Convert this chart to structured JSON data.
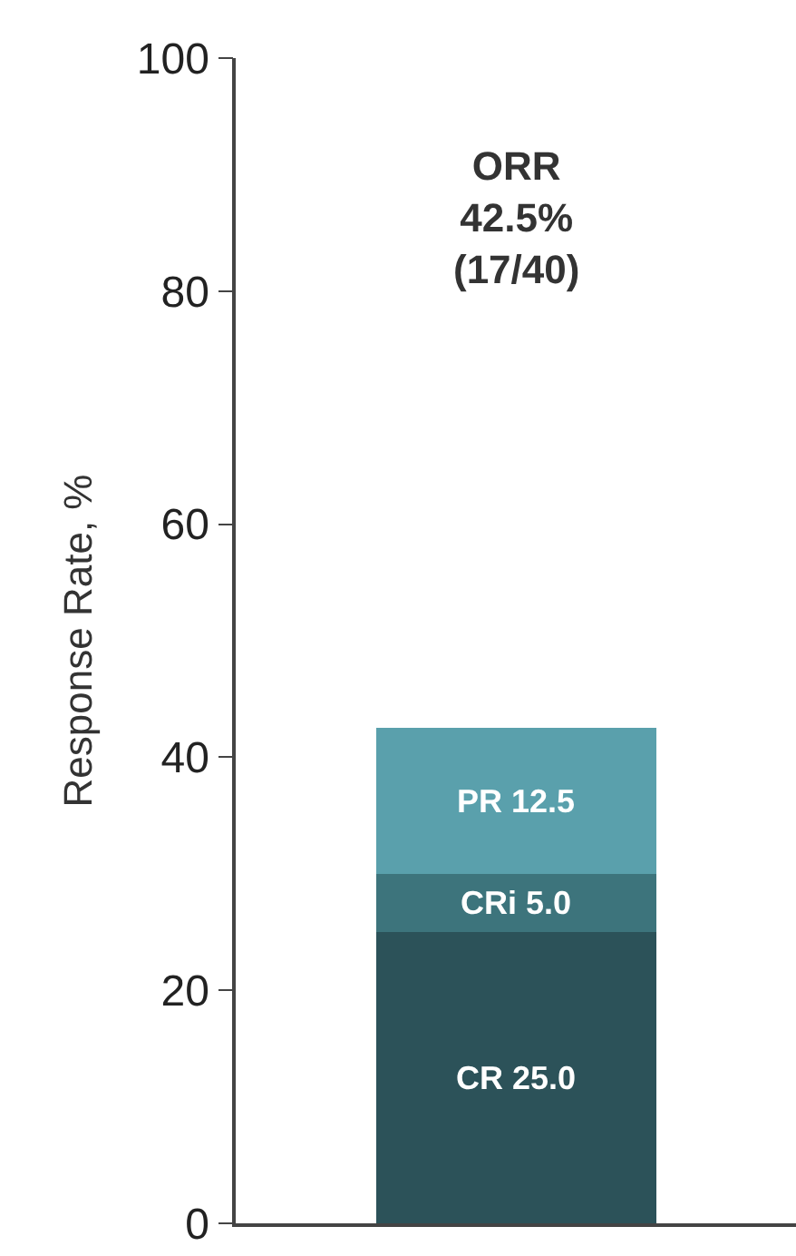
{
  "chart_data": {
    "type": "bar",
    "stacked": true,
    "ylabel": "Response Rate, %",
    "categories": [
      null
    ],
    "series": [
      {
        "color": "#2c5259",
        "values": [
          25.0
        ],
        "value_labels": [
          "CR 25.0"
        ]
      },
      {
        "color": "#3d747c",
        "values": [
          5.0
        ],
        "value_labels": [
          "CRi 5.0"
        ]
      },
      {
        "color": "#5aa0ac",
        "values": [
          12.5
        ],
        "value_labels": [
          "PR 12.5"
        ]
      }
    ],
    "annotations": [
      "ORR\n42.5%\n(17/40)"
    ],
    "ylim": [
      0,
      100
    ],
    "yticks": [
      0,
      20,
      40,
      60,
      80,
      100
    ]
  }
}
